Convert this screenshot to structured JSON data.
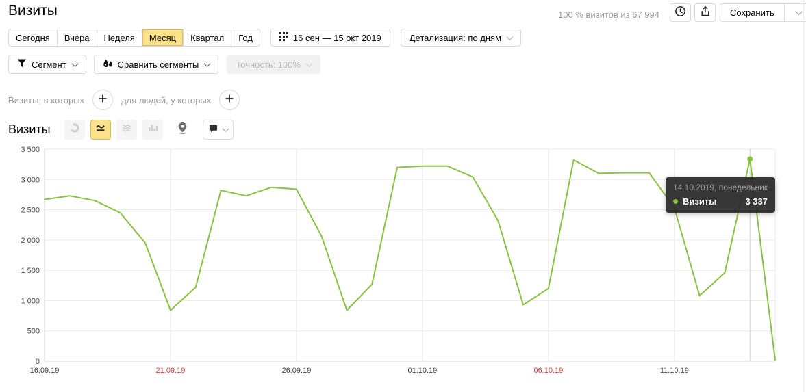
{
  "header": {
    "title": "Визиты",
    "sample_info": "100 % визитов из 67 994",
    "save_label": "Сохранить"
  },
  "period_bar": {
    "tabs": [
      {
        "label": "Сегодня",
        "active": false
      },
      {
        "label": "Вчера",
        "active": false
      },
      {
        "label": "Неделя",
        "active": false
      },
      {
        "label": "Месяц",
        "active": true
      },
      {
        "label": "Квартал",
        "active": false
      },
      {
        "label": "Год",
        "active": false
      }
    ],
    "date_range": "16 сен — 15 окт 2019",
    "detalization": "Детализация: по дням"
  },
  "segment_bar": {
    "segment": "Сегмент",
    "compare": "Сравнить сегменты",
    "accuracy": "Точность: 100%"
  },
  "filter_bar": {
    "visits_condition": "Визиты, в которых",
    "people_condition": "для людей, у которых"
  },
  "metric_bar": {
    "label": "Визиты"
  },
  "tooltip": {
    "date": "14.10.2019, понедельник",
    "series": "Визиты",
    "value": "3 337"
  },
  "chart_data": {
    "type": "line",
    "title": "Визиты",
    "xlabel": "",
    "ylabel": "",
    "ylim": [
      0,
      3500
    ],
    "ytick_step": 500,
    "grid": true,
    "legend": false,
    "weekend_label_color": "#dd3a30",
    "tick_label_color": "#444444",
    "grid_color": "#e9e9e9",
    "axis_color": "#d9d9d9",
    "crosshair_color": "#d2d2d2",
    "x_ticks": [
      {
        "index": 0,
        "label": "16.09.19",
        "weekend": false
      },
      {
        "index": 5,
        "label": "21.09.19",
        "weekend": true
      },
      {
        "index": 10,
        "label": "26.09.19",
        "weekend": false
      },
      {
        "index": 15,
        "label": "01.10.19",
        "weekend": false
      },
      {
        "index": 20,
        "label": "06.10.19",
        "weekend": true
      },
      {
        "index": 25,
        "label": "11.10.19",
        "weekend": false
      }
    ],
    "highlight_index": 28,
    "series": [
      {
        "name": "Визиты",
        "color": "#86c43d",
        "values": [
          2670,
          2730,
          2650,
          2450,
          1950,
          840,
          1220,
          2820,
          2730,
          2870,
          2840,
          2060,
          840,
          1270,
          3200,
          3220,
          3220,
          3040,
          2320,
          930,
          1200,
          3320,
          3100,
          3110,
          3110,
          2530,
          1080,
          1460,
          3337,
          20
        ]
      }
    ]
  }
}
